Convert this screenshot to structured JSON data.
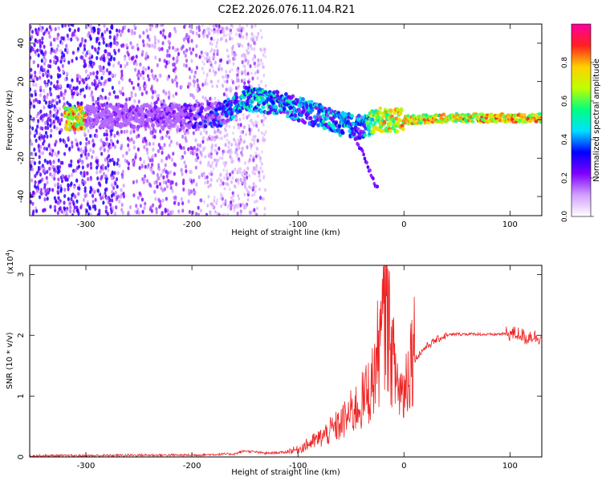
{
  "title": "C2E2.2026.076.11.04.R21",
  "colors": {
    "signal_purple": "#6a1ee6",
    "snr_line": "#ee2222",
    "axis": "#000000"
  },
  "colorbar": {
    "label": "Normalized spectral amplitude",
    "ticks": [
      "0.0",
      "0.2",
      "0.4",
      "0.6",
      "0.8"
    ],
    "tick_values": [
      0.0,
      0.2,
      0.4,
      0.6,
      0.8
    ],
    "range": [
      0,
      1
    ],
    "colors": [
      "#ffffff",
      "#d2a0ff",
      "#8000ff",
      "#0000ff",
      "#00e0ff",
      "#00ff80",
      "#c0ff00",
      "#ffd000",
      "#ff2020",
      "#ff00a0"
    ]
  },
  "chart_data": [
    {
      "type": "heatmap",
      "title": "C2E2.2026.076.11.04.R21",
      "xlabel": "Height of straight line (km)",
      "ylabel": "Frequency (Hz)",
      "xlim": [
        -353,
        130
      ],
      "ylim": [
        -50,
        50
      ],
      "xticks": [
        "-300",
        "-200",
        "-100",
        "0",
        "100"
      ],
      "xtick_values": [
        -300,
        -200,
        -100,
        0,
        100
      ],
      "yticks": [
        "-40",
        "-20",
        "0",
        "20",
        "40"
      ],
      "ytick_values": [
        -40,
        -20,
        0,
        20,
        40
      ],
      "ridge": [
        {
          "x": -300,
          "y": 2,
          "amp": 0.2
        },
        {
          "x": -250,
          "y": 2,
          "amp": 0.25
        },
        {
          "x": -200,
          "y": 2,
          "amp": 0.3
        },
        {
          "x": -170,
          "y": 3,
          "amp": 0.45
        },
        {
          "x": -150,
          "y": 11,
          "amp": 0.6
        },
        {
          "x": -120,
          "y": 9,
          "amp": 0.55
        },
        {
          "x": -90,
          "y": 4,
          "amp": 0.5
        },
        {
          "x": -60,
          "y": -2,
          "amp": 0.55
        },
        {
          "x": -40,
          "y": -4,
          "amp": 0.5
        },
        {
          "x": -25,
          "y": 0,
          "amp": 0.85
        },
        {
          "x": 0,
          "y": 0,
          "amp": 0.9
        },
        {
          "x": 50,
          "y": 1,
          "amp": 0.85
        },
        {
          "x": 80,
          "y": 1,
          "amp": 0.95
        },
        {
          "x": 120,
          "y": 1,
          "amp": 0.9
        }
      ]
    },
    {
      "type": "line",
      "xlabel": "Height of straight line (km)",
      "ylabel": "SNR (10 * v/v)",
      "yscale_label": "(x10",
      "yscale_exp": "4",
      "yscale_close": ")",
      "xlim": [
        -353,
        130
      ],
      "ylim": [
        0,
        3.15
      ],
      "xticks": [
        "-300",
        "-200",
        "-100",
        "0",
        "100"
      ],
      "xtick_values": [
        -300,
        -200,
        -100,
        0,
        100
      ],
      "yticks": [
        "0",
        "1",
        "2",
        "3"
      ],
      "ytick_values": [
        0,
        1,
        2,
        3
      ],
      "series": [
        {
          "values_x": [
            -353,
            -300,
            -250,
            -200,
            -160,
            -150,
            -130,
            -110,
            -100,
            -90,
            -80,
            -70,
            -60,
            -50,
            -40,
            -30,
            -25,
            -20,
            -17,
            -15,
            -12,
            -10,
            -5,
            0,
            5,
            10,
            20,
            30,
            40,
            50,
            60,
            70,
            80,
            90,
            100,
            110,
            115,
            120,
            125,
            130
          ],
          "values_y": [
            0.02,
            0.02,
            0.03,
            0.03,
            0.05,
            0.1,
            0.06,
            0.08,
            0.1,
            0.18,
            0.25,
            0.35,
            0.45,
            0.6,
            0.75,
            1.0,
            1.4,
            1.7,
            2.2,
            1.8,
            1.5,
            1.3,
            0.95,
            0.9,
            1.3,
            1.6,
            1.8,
            1.92,
            2.0,
            2.02,
            2.02,
            2.02,
            2.01,
            2.02,
            2.03,
            2.02,
            1.95,
            2.0,
            1.97,
            1.97
          ]
        }
      ]
    }
  ]
}
